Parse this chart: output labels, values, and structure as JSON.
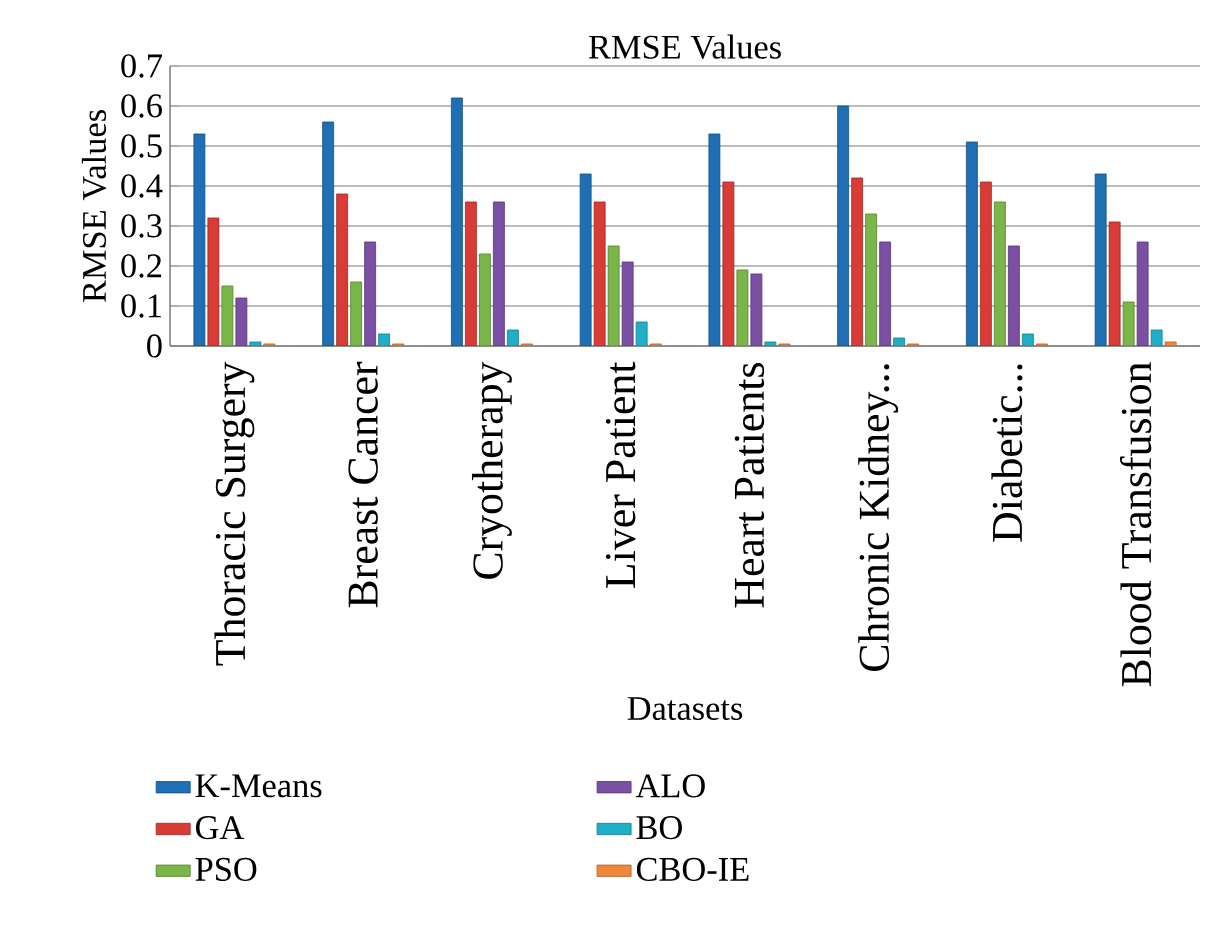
{
  "chart_data": {
    "type": "bar",
    "title": "RMSE Values",
    "xlabel": "Datasets",
    "ylabel": "RMSE Values",
    "categories": [
      "Thoracic Surgery",
      "Breast Cancer",
      "Cryotherapy",
      "Liver Patient",
      "Heart Patients",
      "Chronic Kidney...",
      "Diabetic...",
      "Blood Transfusion"
    ],
    "series": [
      {
        "name": "K-Means",
        "color": "#1f6fb4",
        "values": [
          0.53,
          0.56,
          0.62,
          0.43,
          0.53,
          0.6,
          0.51,
          0.43
        ]
      },
      {
        "name": "GA",
        "color": "#d93b36",
        "values": [
          0.32,
          0.38,
          0.36,
          0.36,
          0.41,
          0.42,
          0.41,
          0.31
        ]
      },
      {
        "name": "PSO",
        "color": "#7ab648",
        "values": [
          0.15,
          0.16,
          0.23,
          0.25,
          0.19,
          0.33,
          0.36,
          0.11
        ]
      },
      {
        "name": "ALO",
        "color": "#7b4fa3",
        "values": [
          0.12,
          0.26,
          0.36,
          0.21,
          0.18,
          0.26,
          0.25,
          0.26
        ]
      },
      {
        "name": "BO",
        "color": "#1fb0c8",
        "values": [
          0.01,
          0.03,
          0.04,
          0.06,
          0.01,
          0.02,
          0.03,
          0.04
        ]
      },
      {
        "name": "CBO-IE",
        "color": "#f0873a",
        "values": [
          0.005,
          0.005,
          0.005,
          0.005,
          0.005,
          0.005,
          0.005,
          0.01
        ]
      }
    ],
    "ylim": [
      0,
      0.7
    ],
    "yticks": [
      0,
      0.1,
      0.2,
      0.3,
      0.4,
      0.5,
      0.6,
      0.7
    ],
    "grid": "y",
    "legend": "bottom"
  }
}
